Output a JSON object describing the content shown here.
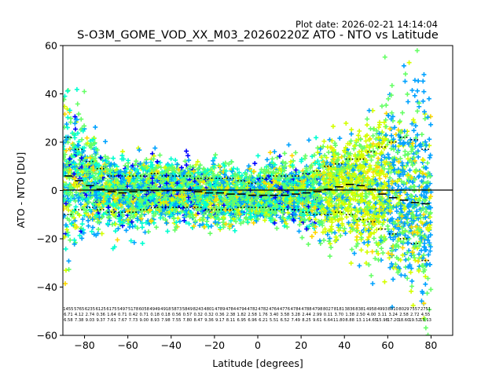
{
  "chart_data": {
    "type": "scatter",
    "title": "S-O3M_GOME_VOD_XX_M03_20260220Z ATO - NTO vs Latitude",
    "plot_date": "Plot date: 2026-02-21 14:14:04",
    "xlabel": "Latitude [degrees]",
    "ylabel": "ATO - NTO [DU]",
    "xlim": [
      -90,
      90
    ],
    "ylim": [
      -60,
      60
    ],
    "xticks": [
      -80,
      -60,
      -40,
      -20,
      0,
      20,
      40,
      60,
      80
    ],
    "yticks": [
      -60,
      -40,
      -20,
      0,
      20,
      40,
      60
    ],
    "zero_line": true,
    "grid": false,
    "colormap": [
      "#0000ff",
      "#00a2ff",
      "#00ffd0",
      "#66ff66",
      "#d4ff00",
      "#ffd700",
      "#ffa500"
    ],
    "bins": {
      "centers": [
        -87.5,
        -82.5,
        -77.5,
        -72.5,
        -67.5,
        -62.5,
        -57.5,
        -52.5,
        -47.5,
        -42.5,
        -37.5,
        -32.5,
        -27.5,
        -22.5,
        -17.5,
        -12.5,
        -7.5,
        -2.5,
        2.5,
        7.5,
        12.5,
        17.5,
        22.5,
        27.5,
        32.5,
        37.5,
        42.5,
        47.5,
        52.5,
        57.5,
        62.5,
        67.5,
        72.5,
        77.5
      ],
      "mean": [
        6.0,
        4.0,
        2.0,
        0.5,
        -0.5,
        -1.0,
        -0.5,
        0.0,
        0.0,
        0.0,
        0.0,
        0.0,
        -0.5,
        -1.0,
        -1.0,
        -1.5,
        -1.5,
        -2.0,
        -2.0,
        -2.0,
        -2.0,
        -1.5,
        -1.0,
        -0.5,
        0.5,
        1.5,
        2.5,
        2.0,
        0.5,
        -1.5,
        -3.0,
        -4.0,
        -5.0,
        -5.5
      ],
      "plus_sd": [
        22,
        17,
        12,
        9,
        6,
        6,
        6,
        6,
        7,
        6,
        6,
        6,
        5,
        5,
        5,
        5,
        4,
        3,
        5,
        6,
        6,
        6,
        7,
        8,
        10,
        11,
        13,
        13,
        16,
        18,
        20,
        22,
        21,
        17
      ],
      "minus_sd": [
        -10,
        -8,
        -7,
        -8,
        -9,
        -9,
        -9,
        -8,
        -7,
        -7,
        -7,
        -7,
        -7,
        -8,
        -8,
        -8,
        -7,
        -7,
        -7,
        -8,
        -8,
        -8,
        -9,
        -10,
        -10,
        -9,
        -10,
        -12,
        -13,
        -16,
        -18,
        -20,
        -22,
        -29
      ],
      "row1": [
        "1455",
        "5765",
        "6235",
        "6125",
        "6175",
        "5497",
        "5178",
        "6058",
        "4949",
        "4918",
        "5873",
        "5849",
        "8243",
        "4801",
        "4789",
        "4784",
        "4794",
        "4782",
        "4782",
        "4764",
        "4776",
        "4784",
        "4788",
        "4798",
        "8027",
        "8181",
        "3836",
        "8381",
        "4958",
        "4993",
        "8010",
        "8029",
        "7557",
        "2751"
      ],
      "row2": [
        "6.71",
        "4.12",
        "2.74",
        "0.36",
        "1.64",
        "0.71",
        "0.42",
        "0.71",
        "0.18",
        "0.18",
        "0.56",
        "0.57",
        "0.32",
        "0.32",
        "0.36",
        "2.38",
        "1.82",
        "2.58",
        "1.76",
        "3.40",
        "3.58",
        "3.28",
        "2.44",
        "2.99",
        "0.11",
        "3.70",
        "1.38",
        "2.50",
        "4.00",
        "3.11",
        "3.24",
        "2.58",
        "2.72",
        "4.55"
      ],
      "row3": [
        "6.58",
        "7.38",
        "9.03",
        "9.37",
        "7.61",
        "7.67",
        "7.73",
        "9.00",
        "8.93",
        "7.98",
        "7.55",
        "7.80",
        "8.47",
        "9.36",
        "9.17",
        "8.11",
        "6.95",
        "6.96",
        "6.21",
        "5.51",
        "6.52",
        "7.49",
        "8.25",
        "9.61",
        "6.64",
        "11.80",
        "8.88",
        "13.1",
        "14.65",
        "15.98",
        "17.20",
        "18.60",
        "19.52",
        "13.13"
      ]
    }
  }
}
